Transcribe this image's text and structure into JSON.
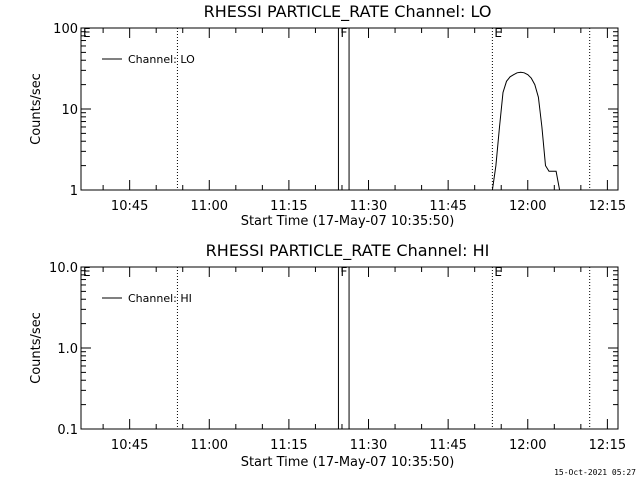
{
  "chart_data": [
    {
      "type": "line",
      "title": "RHESSI PARTICLE_RATE Channel: LO",
      "xlabel": "Start Time (17-May-07 10:35:50)",
      "ylabel": "Counts/sec",
      "y_scale": "log",
      "xlim": [
        "10:35:50",
        "12:17:00"
      ],
      "ylim": [
        1,
        100
      ],
      "x_ticks": [
        "10:45",
        "11:00",
        "11:15",
        "11:30",
        "11:45",
        "12:00",
        "12:15"
      ],
      "y_ticks": [
        "1",
        "10",
        "100"
      ],
      "legend": {
        "position": "top-left",
        "entries": [
          "Channel: LO"
        ]
      },
      "grid": false,
      "series": [
        {
          "name": "Channel: LO",
          "x": [
            "11:53:20",
            "11:54:00",
            "11:54:40",
            "11:55:20",
            "11:56:00",
            "11:56:40",
            "11:57:20",
            "11:58:00",
            "11:58:40",
            "11:59:20",
            "12:00:00",
            "12:00:40",
            "12:01:20",
            "12:02:00",
            "12:02:40",
            "12:03:20",
            "12:04:00",
            "12:04:40",
            "12:05:20",
            "12:06:00"
          ],
          "values": [
            1.0,
            2.0,
            6.0,
            16.0,
            22.0,
            25.0,
            26.5,
            28.0,
            28.5,
            28.0,
            26.5,
            24.0,
            20.0,
            14.0,
            6.0,
            2.0,
            1.7,
            1.7,
            1.7,
            1.0
          ]
        }
      ],
      "annotations": [
        {
          "label": "E",
          "x": "10:35:50",
          "style": "dotted"
        },
        {
          "label": "",
          "x": "10:54:00",
          "style": "dotted"
        },
        {
          "label": "F",
          "x": "11:24:20",
          "style": "solid"
        },
        {
          "label": "",
          "x": "11:26:20",
          "style": "solid"
        },
        {
          "label": "E",
          "x": "11:53:20",
          "style": "dotted"
        },
        {
          "label": "",
          "x": "12:11:40",
          "style": "dotted"
        }
      ]
    },
    {
      "type": "line",
      "title": "RHESSI PARTICLE_RATE Channel: HI",
      "xlabel": "Start Time (17-May-07 10:35:50)",
      "ylabel": "Counts/sec",
      "y_scale": "log",
      "xlim": [
        "10:35:50",
        "12:17:00"
      ],
      "ylim": [
        0.1,
        10.0
      ],
      "x_ticks": [
        "10:45",
        "11:00",
        "11:15",
        "11:30",
        "11:45",
        "12:00",
        "12:15"
      ],
      "y_ticks": [
        "0.1",
        "1.0",
        "10.0"
      ],
      "legend": {
        "position": "top-left",
        "entries": [
          "Channel: HI"
        ]
      },
      "grid": false,
      "series": [
        {
          "name": "Channel: HI",
          "x": [],
          "values": []
        }
      ],
      "annotations": [
        {
          "label": "E",
          "x": "10:35:50",
          "style": "dotted"
        },
        {
          "label": "",
          "x": "10:54:00",
          "style": "dotted"
        },
        {
          "label": "F",
          "x": "11:24:20",
          "style": "solid"
        },
        {
          "label": "",
          "x": "11:26:20",
          "style": "solid"
        },
        {
          "label": "E",
          "x": "11:53:20",
          "style": "dotted"
        },
        {
          "label": "",
          "x": "12:11:40",
          "style": "dotted"
        }
      ]
    }
  ],
  "footer": {
    "timestamp": "15-Oct-2021 05:27"
  }
}
